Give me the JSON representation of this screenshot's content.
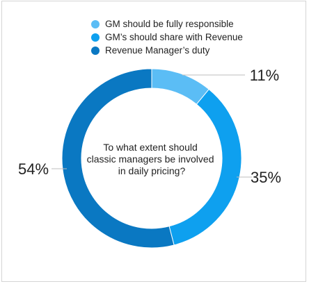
{
  "chart_data": {
    "type": "pie",
    "title": "",
    "center_text": "To what extent should classic managers be involved in  daily pricing?",
    "center_lines": [
      "To what extent should",
      "classic managers be involved",
      "in  daily pricing?"
    ],
    "categories": [
      "GM should be fully responsible",
      "GM’s should share with Revenue",
      "Revenue Manager’s duty"
    ],
    "values": [
      11,
      35,
      54
    ],
    "value_labels": [
      "11%",
      "35%",
      "54%"
    ],
    "colors": [
      "#5bbdf5",
      "#0ea0ef",
      "#0a78c2"
    ],
    "legend_position": "top",
    "donut": true
  }
}
